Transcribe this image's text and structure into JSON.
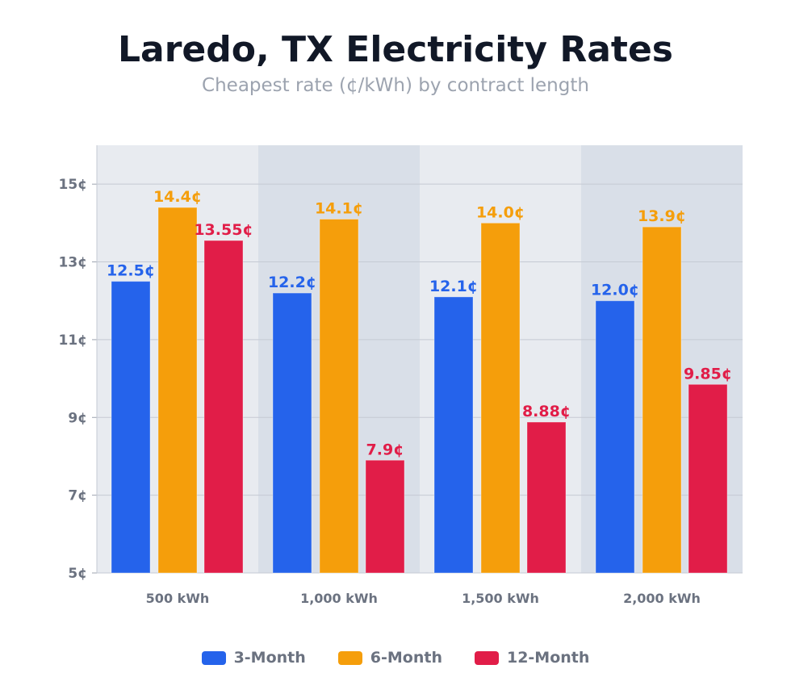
{
  "chart_data": {
    "type": "bar",
    "title": "Laredo, TX Electricity Rates",
    "subtitle": "Cheapest rate (¢/kWh) by contract length",
    "xlabel": "",
    "ylabel": "",
    "ylim": [
      5,
      16
    ],
    "yticks": [
      5,
      7,
      9,
      11,
      13,
      15
    ],
    "ytick_labels": [
      "5¢",
      "7¢",
      "9¢",
      "11¢",
      "13¢",
      "15¢"
    ],
    "grid": true,
    "legend_position": "bottom",
    "categories": [
      "500 kWh",
      "1,000 kWh",
      "1,500 kWh",
      "2,000 kWh"
    ],
    "series": [
      {
        "name": "3-Month",
        "color": "#2563eb",
        "values": [
          12.5,
          12.2,
          12.1,
          12.0
        ],
        "labels": [
          "12.5¢",
          "12.2¢",
          "12.1¢",
          "12.0¢"
        ]
      },
      {
        "name": "6-Month",
        "color": "#f59e0b",
        "values": [
          14.4,
          14.1,
          14.0,
          13.9
        ],
        "labels": [
          "14.4¢",
          "14.1¢",
          "14.0¢",
          "13.9¢"
        ]
      },
      {
        "name": "12-Month",
        "color": "#e11d48",
        "values": [
          13.55,
          7.9,
          8.88,
          9.85
        ],
        "labels": [
          "13.55¢",
          "7.9¢",
          "8.88¢",
          "9.85¢"
        ]
      }
    ],
    "band_colors": [
      "#e8ebf0",
      "#d9dfe8"
    ]
  }
}
